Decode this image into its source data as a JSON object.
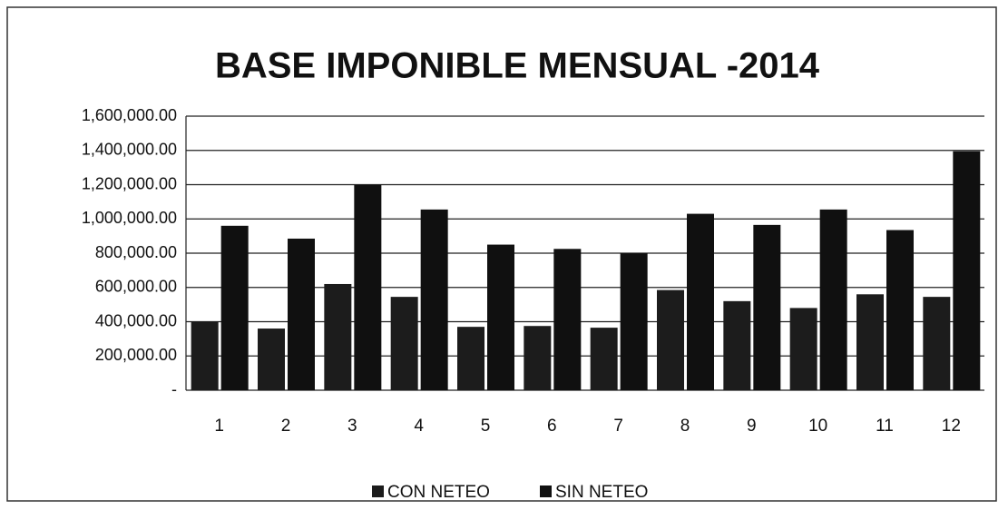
{
  "chart_data": {
    "type": "bar",
    "title": "BASE IMPONIBLE MENSUAL -2014",
    "categories": [
      "1",
      "2",
      "3",
      "4",
      "5",
      "6",
      "7",
      "8",
      "9",
      "10",
      "11",
      "12"
    ],
    "series": [
      {
        "name": "CON NETEO",
        "color": "#1c1c1c",
        "values": [
          400000,
          360000,
          620000,
          545000,
          370000,
          375000,
          365000,
          585000,
          520000,
          480000,
          560000,
          545000
        ]
      },
      {
        "name": "SIN NETEO",
        "color": "#101010",
        "values": [
          960000,
          885000,
          1200000,
          1055000,
          850000,
          825000,
          800000,
          1030000,
          965000,
          1055000,
          935000,
          1395000
        ]
      }
    ],
    "ylim": [
      0,
      1600000
    ],
    "yticks": [
      {
        "value": 0,
        "label": "-"
      },
      {
        "value": 200000,
        "label": "200,000.00"
      },
      {
        "value": 400000,
        "label": "400,000.00"
      },
      {
        "value": 600000,
        "label": "600,000.00"
      },
      {
        "value": 800000,
        "label": "800,000.00"
      },
      {
        "value": 1000000,
        "label": "1,000,000.00"
      },
      {
        "value": 1200000,
        "label": "1,200,000.00"
      },
      {
        "value": 1400000,
        "label": "1,400,000.00"
      },
      {
        "value": 1600000,
        "label": "1,600,000.00"
      }
    ],
    "grid": true,
    "legend": "bottom"
  }
}
